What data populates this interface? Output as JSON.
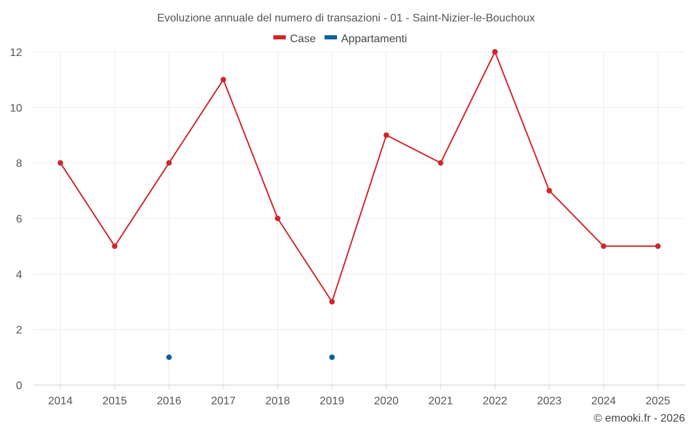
{
  "chart_data": {
    "type": "line",
    "title": "Evoluzione annuale del numero di transazioni - 01 - Saint-Nizier-le-Bouchoux",
    "categories": [
      "2014",
      "2015",
      "2016",
      "2017",
      "2018",
      "2019",
      "2020",
      "2021",
      "2022",
      "2023",
      "2024",
      "2025"
    ],
    "series": [
      {
        "name": "Case",
        "color": "#d0262b",
        "values": [
          8,
          5,
          8,
          11,
          6,
          3,
          9,
          8,
          12,
          7,
          5,
          5
        ]
      },
      {
        "name": "Appartamenti",
        "color": "#0b629e",
        "values": [
          null,
          null,
          1,
          null,
          null,
          1,
          null,
          null,
          null,
          null,
          null,
          null
        ]
      }
    ],
    "ylim": [
      0,
      12
    ],
    "yticks": [
      0,
      2,
      4,
      6,
      8,
      10,
      12
    ],
    "grid": true,
    "legend_position": "top-center"
  },
  "credit": "© emooki.fr - 2026"
}
